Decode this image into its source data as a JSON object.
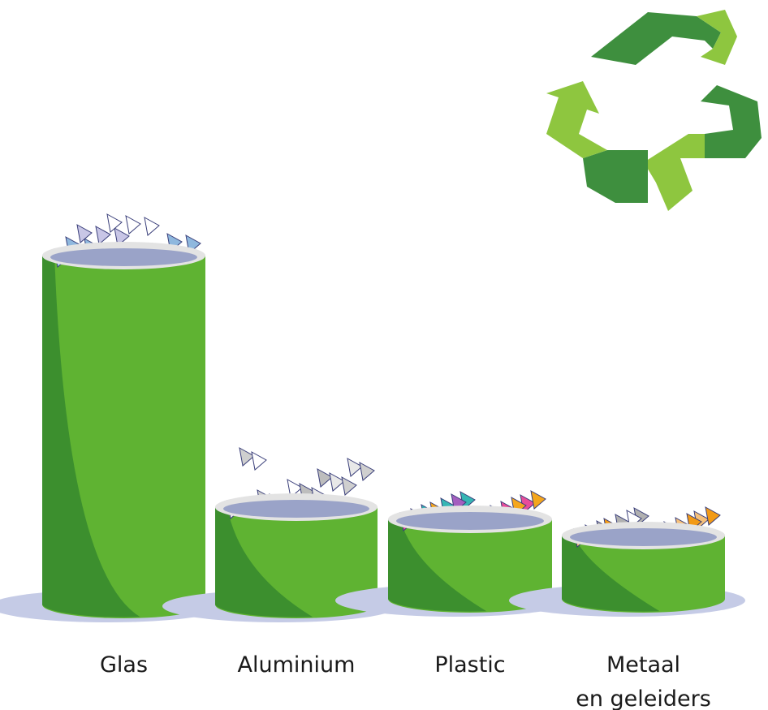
{
  "items": [
    {
      "label_lines": [
        "Glas"
      ]
    },
    {
      "label_lines": [
        "Aluminium"
      ]
    },
    {
      "label_lines": [
        "Plastic"
      ]
    },
    {
      "label_lines": [
        "Metaal",
        "en geleiders"
      ]
    }
  ]
}
